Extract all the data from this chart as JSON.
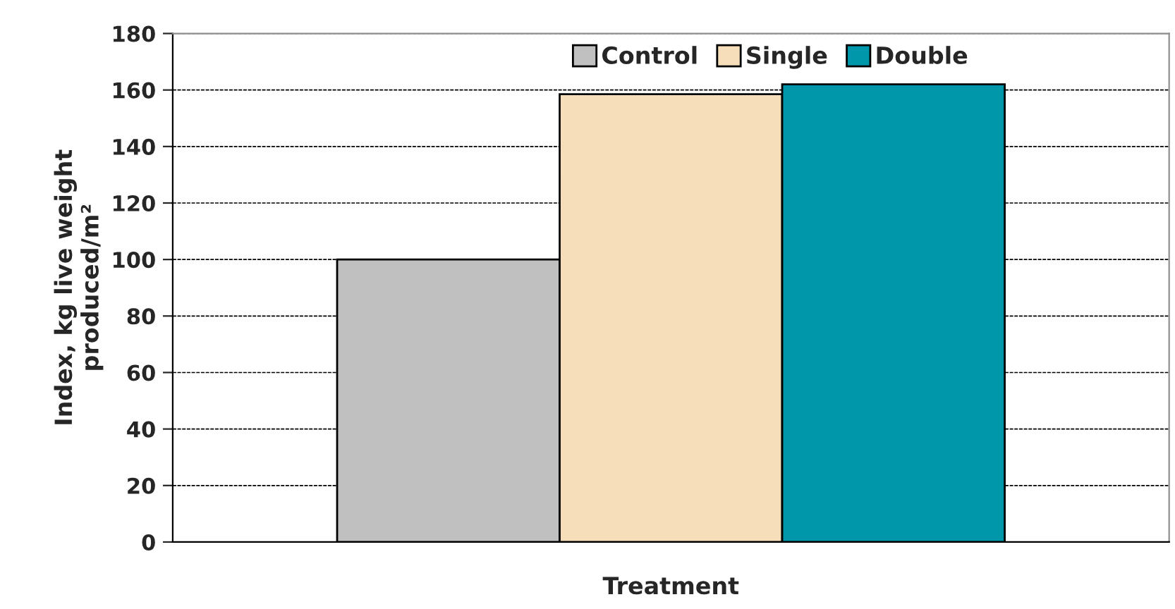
{
  "chart_data": {
    "type": "bar",
    "xlabel": "Treatment",
    "ylabel": "Index, kg live weight\nproduced/m²",
    "categories": [
      null
    ],
    "series": [
      {
        "name": "Control",
        "color": "#c0c0c0",
        "values": [
          100
        ]
      },
      {
        "name": "Single",
        "color": "#f5deb9",
        "values": [
          158.5
        ]
      },
      {
        "name": "Double",
        "color": "#0097ab",
        "values": [
          162
        ]
      }
    ],
    "ylim": [
      0,
      180
    ],
    "yticks": [
      0,
      20,
      40,
      60,
      80,
      100,
      120,
      140,
      160,
      180
    ],
    "grid": "y",
    "legend": "top"
  }
}
